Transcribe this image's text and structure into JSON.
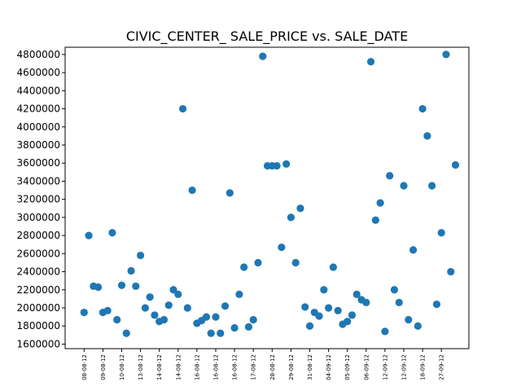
{
  "chart_data": {
    "type": "scatter",
    "title": "CIVIC_CENTER_ SALE_PRICE vs. SALE_DATE",
    "xlabel": "",
    "ylabel": "",
    "y_ticks": [
      1600000,
      1800000,
      2000000,
      2200000,
      2400000,
      2600000,
      2800000,
      3000000,
      3200000,
      3400000,
      3600000,
      3800000,
      4000000,
      4200000,
      4400000,
      4600000,
      4800000
    ],
    "ylim": [
      1550000,
      4880000
    ],
    "x_ticks": [
      "08-08-12",
      "09-08-12",
      "10-08-12",
      "13-08-12",
      "14-08-12",
      "14-08-12",
      "16-08-12",
      "16-08-12",
      "16-08-12",
      "17-08-12",
      "28-08-12",
      "29-08-12",
      "31-08-12",
      "04-09-12",
      "05-09-12",
      "06-09-12",
      "12-09-12",
      "12-09-12",
      "18-09-12",
      "27-09-12"
    ],
    "x_tick_every": 4,
    "x_count": 80,
    "marker_color": "#1f77b4",
    "values": [
      1950000,
      2800000,
      2240000,
      2230000,
      1950000,
      1970000,
      2830000,
      1870000,
      2250000,
      1720000,
      2410000,
      2240000,
      2580000,
      2000000,
      2120000,
      1920000,
      1850000,
      1870000,
      2030000,
      2200000,
      2150000,
      4200000,
      2000000,
      3300000,
      1830000,
      1860000,
      1900000,
      1720000,
      1900000,
      1720000,
      2020000,
      3270000,
      1780000,
      2150000,
      2450000,
      1790000,
      1870000,
      2500000,
      4780000,
      3570000,
      3570000,
      3570000,
      2670000,
      3590000,
      3000000,
      2500000,
      3100000,
      2010000,
      1800000,
      1950000,
      1910000,
      2200000,
      2000000,
      2450000,
      1970000,
      1820000,
      1850000,
      1920000,
      2150000,
      2090000,
      2060000,
      4720000,
      2970000,
      3160000,
      1740000,
      3460000,
      2200000,
      2060000,
      3350000,
      1870000,
      2640000,
      1800000,
      4200000,
      3900000,
      3350000,
      2040000,
      2830000,
      4800000,
      2400000,
      3580000
    ]
  }
}
